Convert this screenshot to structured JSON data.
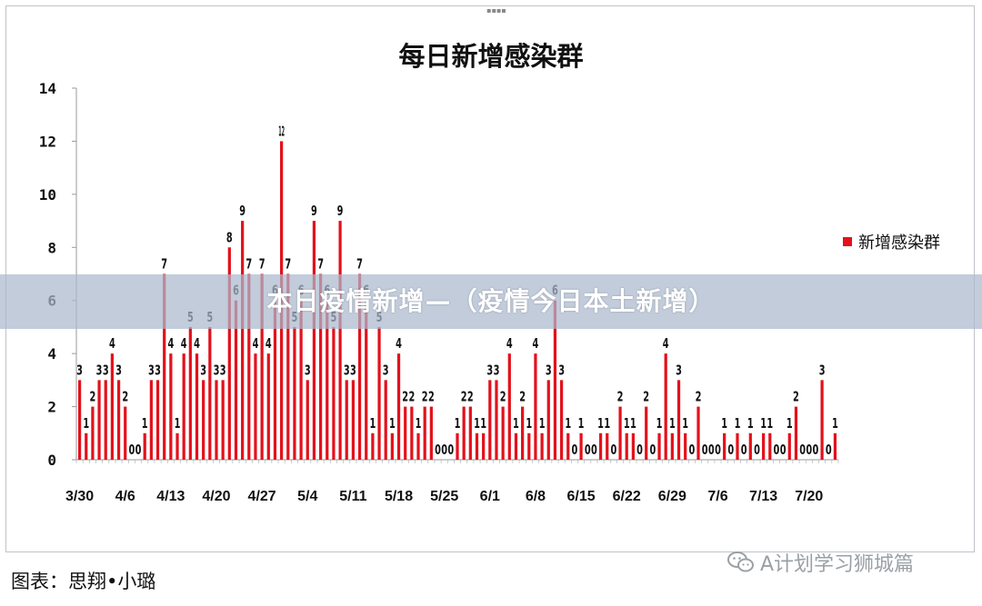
{
  "banner_text": "本日疫情新增—（疫情今日本土新增）",
  "credit": "图表：思翔•小璐",
  "watermark": {
    "text": "A计划学习狮城篇",
    "icon": "wechat-icon"
  },
  "colors": {
    "bar": "#e3111b",
    "axis": "#999999",
    "text": "#111111"
  },
  "chart_data": {
    "type": "bar",
    "title": "每日新增感染群",
    "series": [
      {
        "name": "新增感染群",
        "values": [
          3,
          1,
          2,
          3,
          3,
          4,
          3,
          2,
          0,
          0,
          1,
          3,
          3,
          7,
          4,
          1,
          4,
          5,
          4,
          3,
          5,
          3,
          3,
          8,
          6,
          9,
          7,
          4,
          7,
          4,
          6,
          12,
          7,
          5,
          6,
          3,
          9,
          7,
          6,
          5,
          9,
          3,
          3,
          7,
          6,
          1,
          5,
          3,
          1,
          4,
          2,
          2,
          1,
          2,
          2,
          0,
          0,
          0,
          1,
          2,
          2,
          1,
          1,
          3,
          3,
          2,
          4,
          1,
          2,
          1,
          4,
          1,
          3,
          6,
          3,
          1,
          0,
          1,
          0,
          0,
          1,
          1,
          0,
          2,
          1,
          1,
          0,
          2,
          0,
          1,
          4,
          1,
          3,
          1,
          0,
          2,
          0,
          0,
          0,
          1,
          0,
          1,
          0,
          1,
          0,
          1,
          1,
          0,
          0,
          1,
          2,
          0,
          0,
          0,
          3,
          0,
          1
        ]
      }
    ],
    "x_ticks": [
      "3/30",
      "4/6",
      "4/13",
      "4/20",
      "4/27",
      "5/4",
      "5/11",
      "5/18",
      "5/25",
      "6/1",
      "6/8",
      "6/15",
      "6/22",
      "6/29",
      "7/6",
      "7/13",
      "7/20"
    ],
    "x_tick_step": 7,
    "y_ticks": [
      "0",
      "2",
      "4",
      "6",
      "8",
      "10",
      "12",
      "14"
    ],
    "ylim": [
      0,
      14
    ],
    "legend_position": "right",
    "grid": false
  }
}
